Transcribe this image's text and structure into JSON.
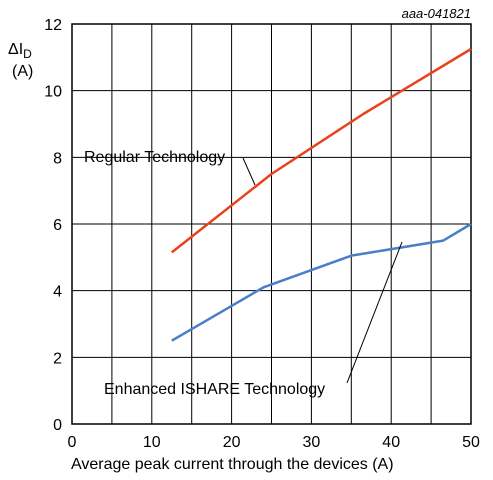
{
  "chart_data": {
    "type": "line",
    "figure_id": "aaa-041821",
    "ylabel_main": "ΔI",
    "ylabel_sub": "D",
    "ylabel_unit": "(A)",
    "xlabel": "Average peak current through the devices (A)",
    "xlim": [
      0,
      50
    ],
    "ylim": [
      0,
      12
    ],
    "xticks": [
      "0",
      "10",
      "20",
      "30",
      "40",
      "50"
    ],
    "yticks": [
      "0",
      "2",
      "4",
      "6",
      "8",
      "10",
      "12"
    ],
    "grid": true,
    "series": [
      {
        "name": "Regular Technology",
        "color": "#e8431c",
        "points": [
          [
            12.5,
            5.15
          ],
          [
            25,
            7.5
          ],
          [
            36.5,
            9.3
          ],
          [
            50,
            11.25
          ]
        ]
      },
      {
        "name": "Enhanced ISHARE Technology",
        "color": "#4a7fc8",
        "points": [
          [
            12.5,
            2.5
          ],
          [
            24,
            4.1
          ],
          [
            35,
            5.05
          ],
          [
            46.5,
            5.5
          ],
          [
            50,
            6.0
          ]
        ]
      }
    ]
  }
}
